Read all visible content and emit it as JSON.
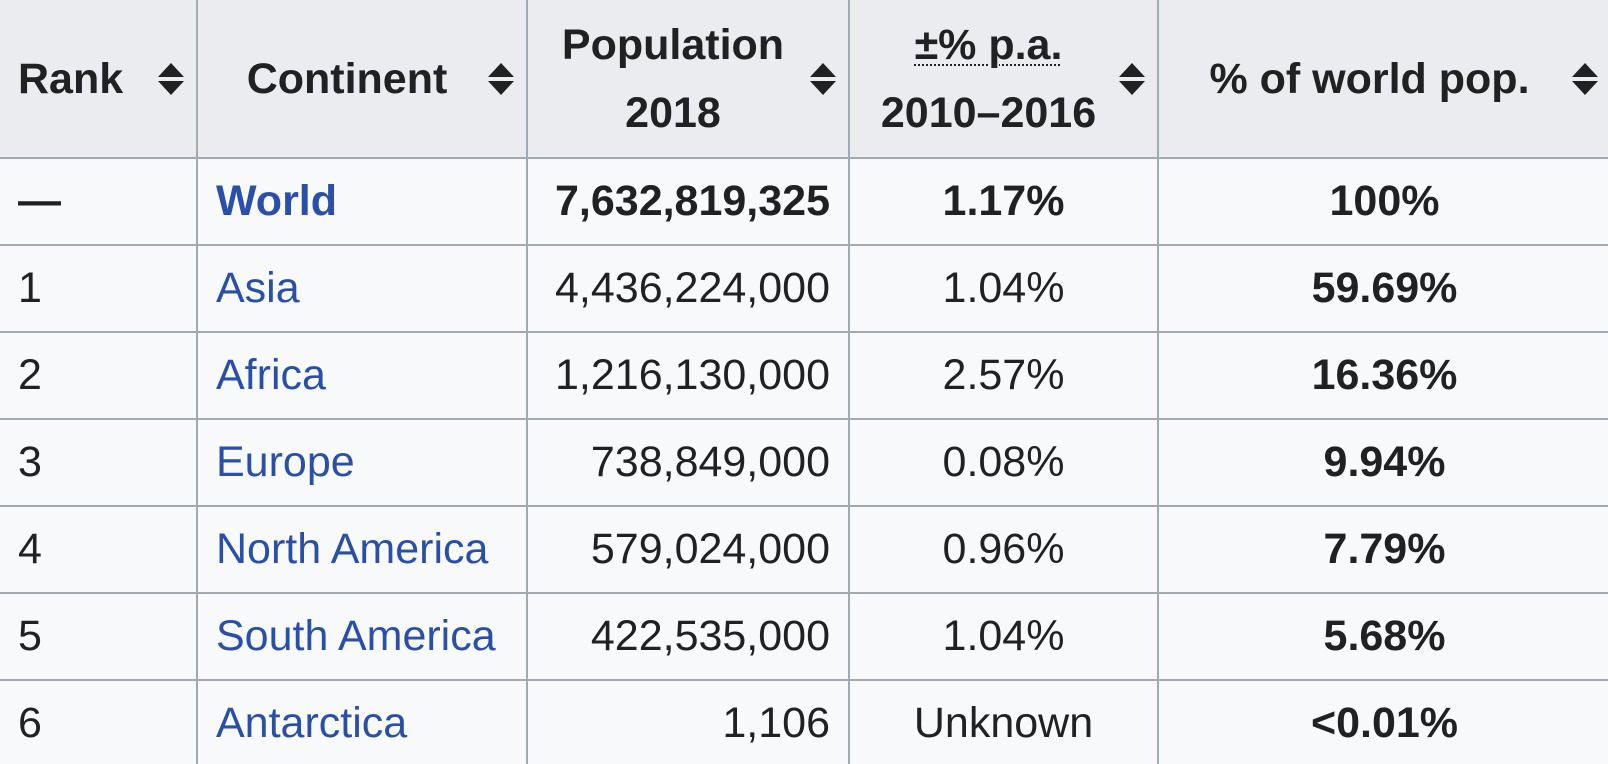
{
  "headers": {
    "rank": "Rank",
    "continent": "Continent",
    "population_line1": "Population",
    "population_line2": "2018",
    "growth_line1": "±% p.a.",
    "growth_line2": "2010–2016",
    "share": "% of world pop."
  },
  "icons": {
    "sort": "sort-both-icon"
  },
  "colors": {
    "link": "#2a4fa8",
    "header_bg": "#eaecf0",
    "cell_bg": "#f8f9fa",
    "border": "#a2a9b1"
  },
  "rows": [
    {
      "rank": "—",
      "continent": "World",
      "population": "7,632,819,325",
      "growth": "1.17%",
      "share": "100%"
    },
    {
      "rank": "1",
      "continent": "Asia",
      "population": "4,436,224,000",
      "growth": "1.04%",
      "share": "59.69%"
    },
    {
      "rank": "2",
      "continent": "Africa",
      "population": "1,216,130,000",
      "growth": "2.57%",
      "share": "16.36%"
    },
    {
      "rank": "3",
      "continent": "Europe",
      "population": "738,849,000",
      "growth": "0.08%",
      "share": "9.94%"
    },
    {
      "rank": "4",
      "continent": "North America",
      "population": "579,024,000",
      "growth": "0.96%",
      "share": "7.79%"
    },
    {
      "rank": "5",
      "continent": "South America",
      "population": "422,535,000",
      "growth": "1.04%",
      "share": "5.68%"
    },
    {
      "rank": "6",
      "continent": "Antarctica",
      "population": "1,106",
      "growth": "Unknown",
      "share": "<0.01%"
    }
  ]
}
